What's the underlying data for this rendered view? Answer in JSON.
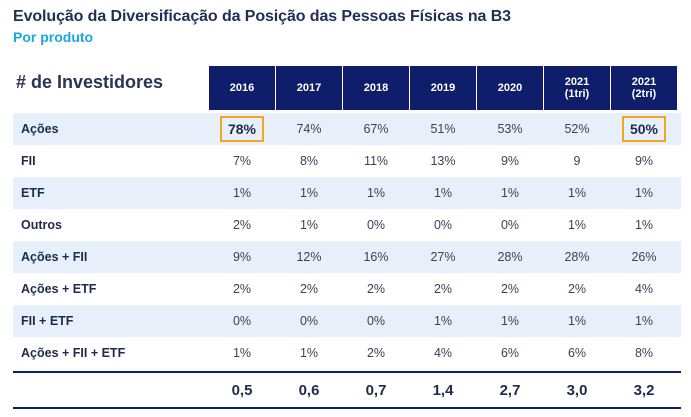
{
  "title": "Evolução da Diversificação da Posição das Pessoas Físicas na B3",
  "subtitle": "Por produto",
  "table": {
    "corner_label": "# de Investidores",
    "columns": [
      {
        "line1": "2016",
        "line2": ""
      },
      {
        "line1": "2017",
        "line2": ""
      },
      {
        "line1": "2018",
        "line2": ""
      },
      {
        "line1": "2019",
        "line2": ""
      },
      {
        "line1": "2020",
        "line2": ""
      },
      {
        "line1": "2021",
        "line2": "(1tri)"
      },
      {
        "line1": "2021",
        "line2": "(2tri)"
      }
    ],
    "rows": [
      {
        "label": "Ações",
        "values": [
          "78%",
          "74%",
          "67%",
          "51%",
          "53%",
          "52%",
          "50%"
        ]
      },
      {
        "label": "FII",
        "values": [
          "7%",
          "8%",
          "11%",
          "13%",
          "9%",
          "9",
          "9%"
        ]
      },
      {
        "label": "ETF",
        "values": [
          "1%",
          "1%",
          "1%",
          "1%",
          "1%",
          "1%",
          "1%"
        ]
      },
      {
        "label": "Outros",
        "values": [
          "2%",
          "1%",
          "0%",
          "0%",
          "0%",
          "1%",
          "1%"
        ]
      },
      {
        "label": "Ações + FII",
        "values": [
          "9%",
          "12%",
          "16%",
          "27%",
          "28%",
          "28%",
          "26%"
        ]
      },
      {
        "label": "Ações + ETF",
        "values": [
          "2%",
          "2%",
          "2%",
          "2%",
          "2%",
          "2%",
          "4%"
        ]
      },
      {
        "label": "FII + ETF",
        "values": [
          "0%",
          "0%",
          "0%",
          "1%",
          "1%",
          "1%",
          "1%"
        ]
      },
      {
        "label": "Ações + FII + ETF",
        "values": [
          "1%",
          "1%",
          "2%",
          "4%",
          "6%",
          "6%",
          "8%"
        ]
      }
    ],
    "totals": [
      "0,5",
      "0,6",
      "0,7",
      "1,4",
      "2,7",
      "3,0",
      "3,2"
    ],
    "highlight_color": "#f4a51c",
    "header_color": "#0e1e6b"
  }
}
